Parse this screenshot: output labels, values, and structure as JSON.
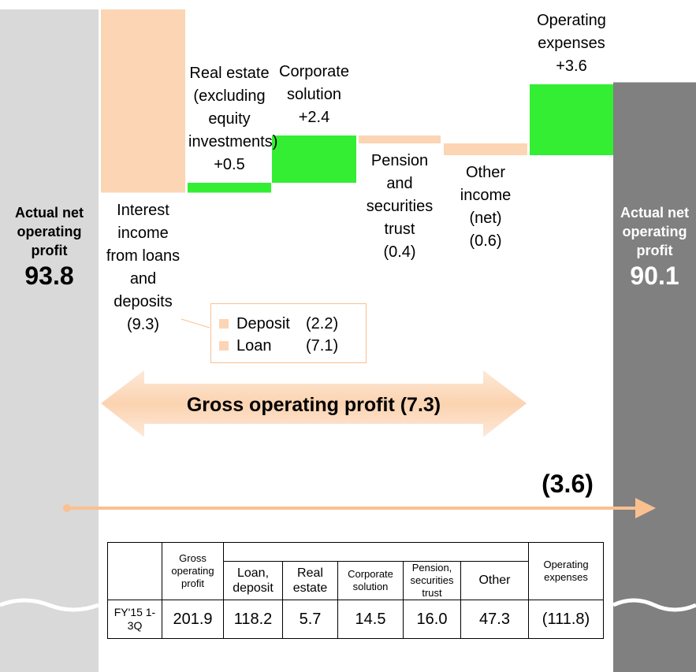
{
  "chart_data": {
    "type": "waterfall",
    "categories": [
      "Actual net operating profit",
      "Interest income from loans and deposits",
      "Real estate (excluding equity investments)",
      "Corporate solution",
      "Pension and securities trust",
      "Other income (net)",
      "Operating expenses",
      "Actual net operating profit"
    ],
    "values": [
      93.8,
      -9.3,
      0.5,
      2.4,
      -0.4,
      -0.6,
      3.6,
      90.1
    ],
    "value_labels": [
      "93.8",
      "(9.3)",
      "+0.5",
      "+2.4",
      "(0.4)",
      "(0.6)",
      "+3.6",
      "90.1"
    ],
    "totals": [
      0,
      7
    ],
    "colors": {
      "increase": "#33ee33",
      "decrease": "#fcd5b4",
      "start": "#d9d9d9",
      "end": "#808080"
    }
  },
  "breakdown": [
    {
      "name": "Deposit",
      "label": "(2.2)"
    },
    {
      "name": "Loan",
      "label": "(7.1)"
    }
  ],
  "annotations": {
    "gross": "Gross operating profit (7.3)",
    "total_change": "(3.6)"
  },
  "table": {
    "header": [
      "Gross operating profit",
      "Loan, deposit",
      "Real estate",
      "Corporate solution",
      "Pension, securities trust",
      "Other",
      "Operating expenses"
    ],
    "rows": [
      [
        "FY'15 1-3Q",
        "201.9",
        "118.2",
        "5.7",
        "14.5",
        "16.0",
        "47.3",
        "(111.8)"
      ]
    ]
  }
}
